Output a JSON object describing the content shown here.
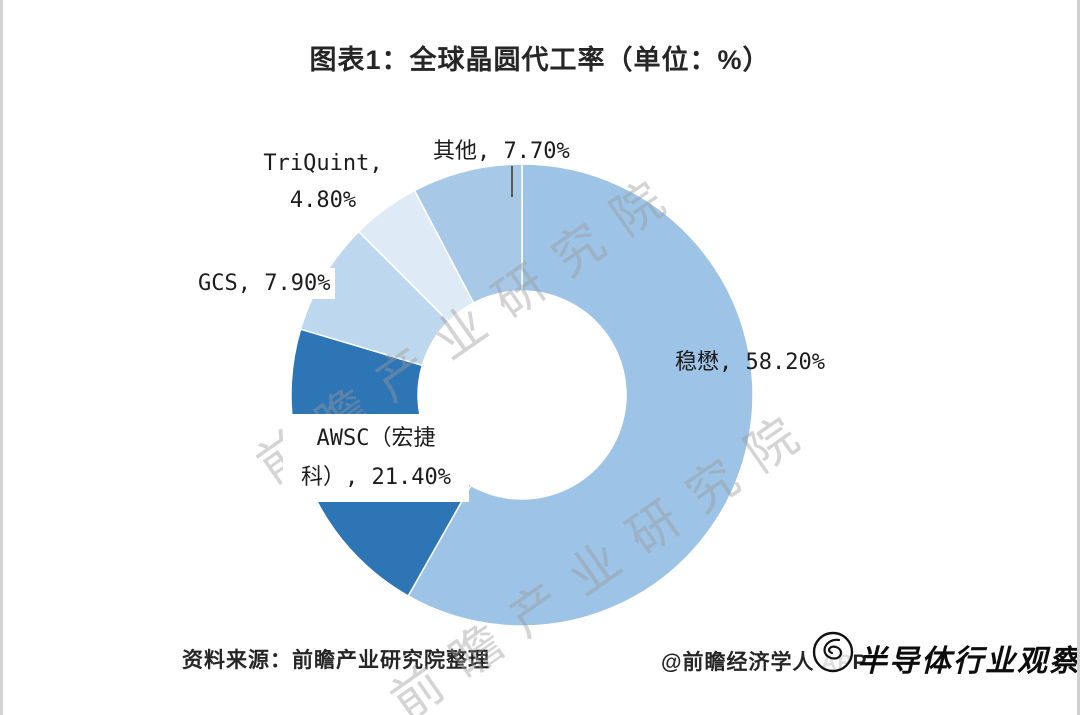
{
  "title": "图表1：全球晶圆代工率（单位：%）",
  "chart_data": {
    "type": "pie",
    "donut": true,
    "inner_radius_ratio": 0.45,
    "start_angle": "top",
    "direction": "clockwise",
    "title": "图表1：全球晶圆代工率（单位：%）",
    "unit": "%",
    "legend": "none",
    "categories": [
      "稳懋",
      "AWSC（宏捷科）",
      "GCS",
      "TriQuint",
      "其他"
    ],
    "values": [
      58.2,
      21.4,
      7.9,
      4.8,
      7.7
    ],
    "segments": [
      {
        "name": "稳懋",
        "value": 58.2,
        "label": "稳懋, 58.20%",
        "color": "#9DC3E6"
      },
      {
        "name": "AWSC（宏捷科）",
        "value": 21.4,
        "label": "AWSC（宏捷科）, 21.40%",
        "color": "#2E75B6"
      },
      {
        "name": "GCS",
        "value": 7.9,
        "label": "GCS, 7.90%",
        "color": "#BDD7EE"
      },
      {
        "name": "TriQuint",
        "value": 4.8,
        "label": "TriQuint, 4.80%",
        "color": "#DEEBF7"
      },
      {
        "name": "其他",
        "value": 7.7,
        "label": "其他, 7.70%",
        "color": "#A8C8E8"
      }
    ]
  },
  "callouts": {
    "qita": "其他, 7.70%",
    "triquint_line1": "TriQuint,",
    "triquint_line2": "4.80%",
    "gcs": "GCS, 7.90%",
    "awsc_line1": "AWSC（宏捷",
    "awsc_line2": "科）, 21.40%",
    "wenmao": "稳懋, 58.20%"
  },
  "watermark": {
    "text": "前瞻产业研究院"
  },
  "footer": {
    "source": "资料来源：前瞻产业研究院整理",
    "credit": "@前瞻经济学人 APP",
    "logo_text": "半导体行业观察"
  }
}
